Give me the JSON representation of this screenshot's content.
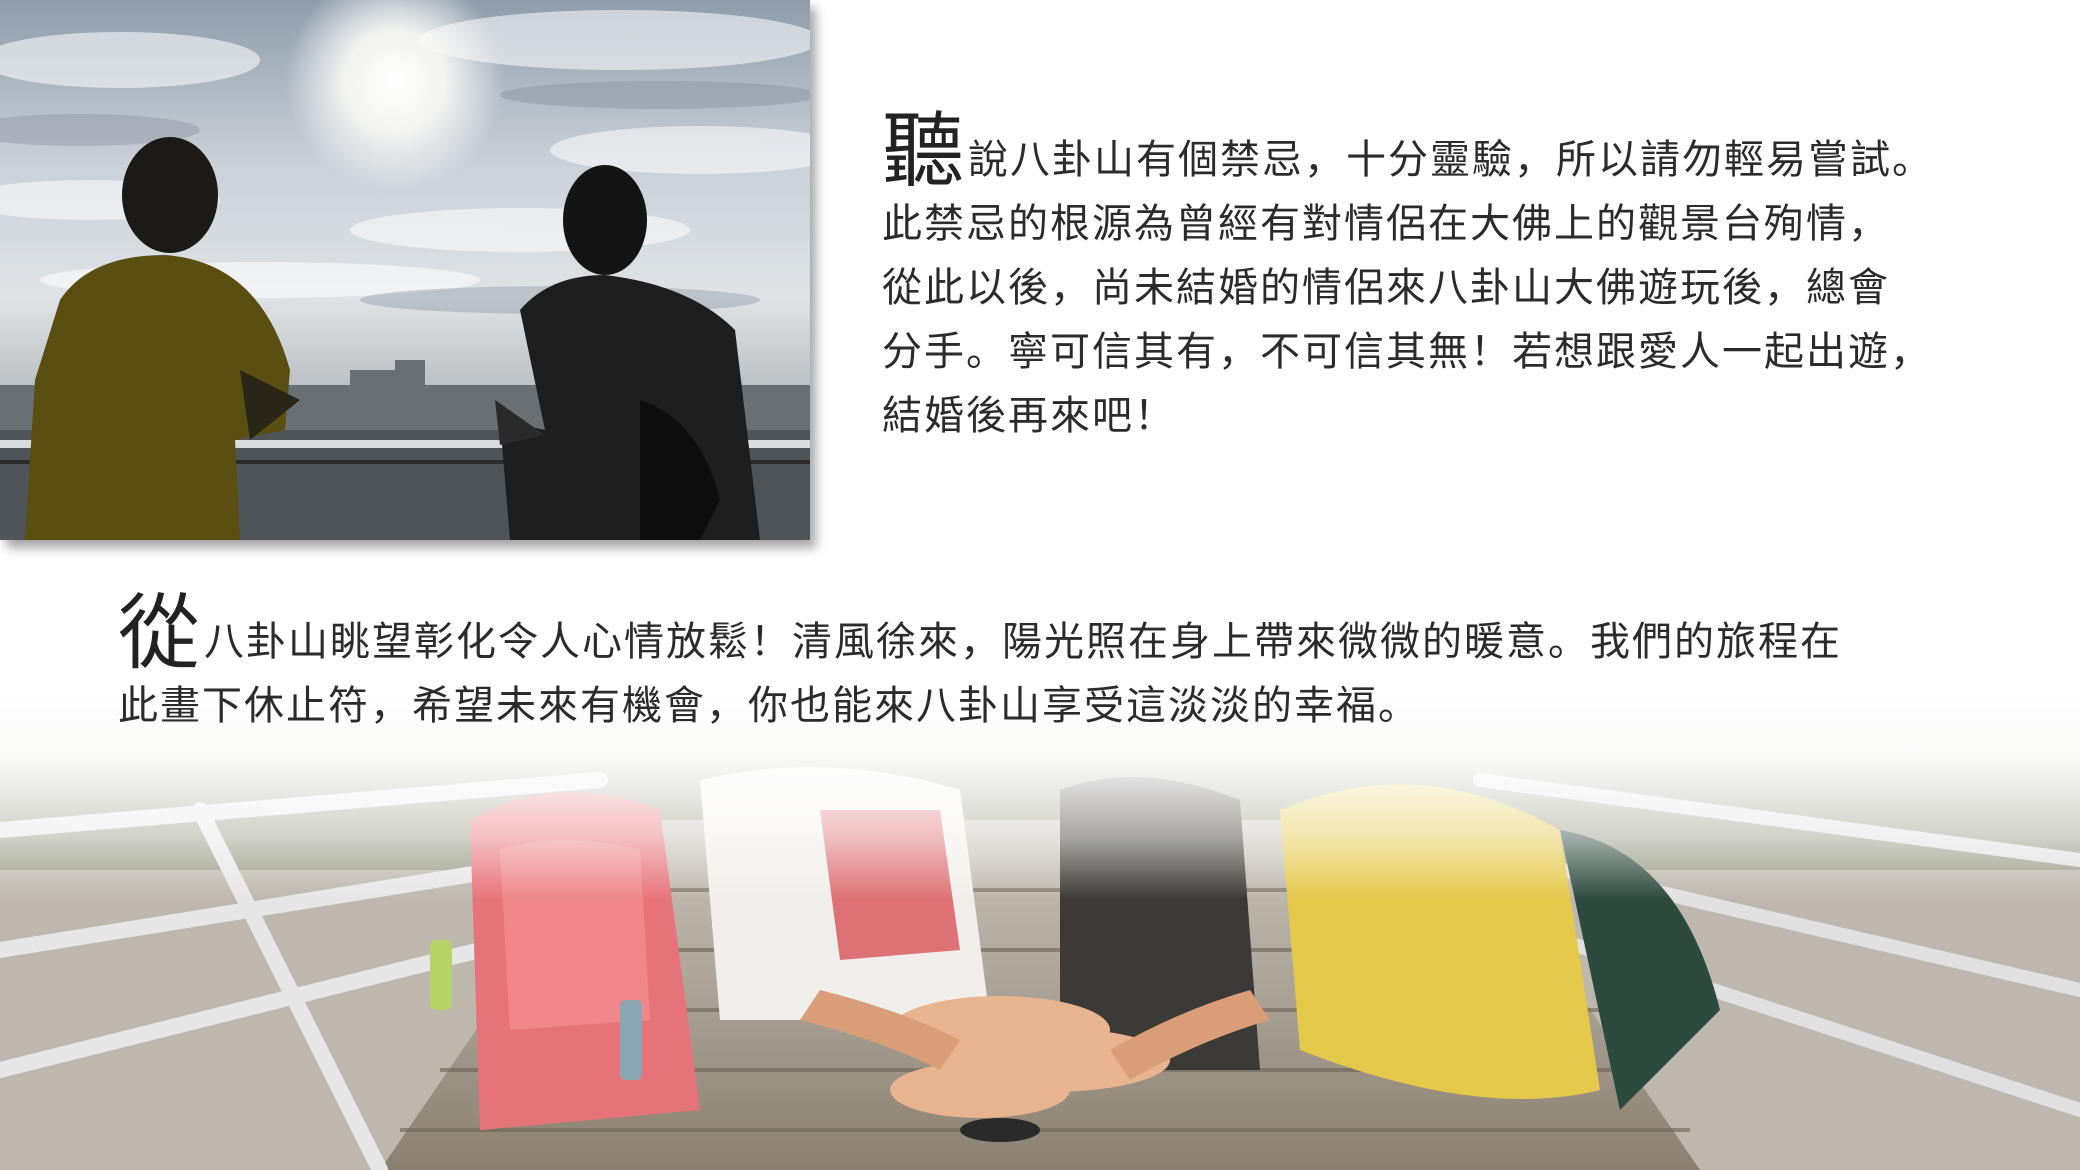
{
  "top_section": {
    "drop_cap": "聽",
    "lines": [
      "說八卦山有個禁忌，十分靈驗，所以請勿輕易嘗試。",
      "此禁忌的根源為曾經有對情侶在大佛上的觀景台殉情，",
      "從此以後，尚未結婚的情侶來八卦山大佛遊玩後，總會",
      "分手。寧可信其有，不可信其無！若想跟愛人一起出遊，",
      "結婚後再來吧！"
    ]
  },
  "bottom_section": {
    "drop_cap": "從",
    "lines": [
      "八卦山眺望彰化令人心情放鬆！清風徐來，陽光照在身上帶來微微的暖意。我們的旅程在",
      "此畫下休止符，希望未來有機會，你也能來八卦山享受這淡淡的幸福。"
    ]
  },
  "images": {
    "top_photo": "two-friends-silhouette-overlooking-city",
    "bottom_photo": "friends-stacking-hands-on-bridge"
  }
}
